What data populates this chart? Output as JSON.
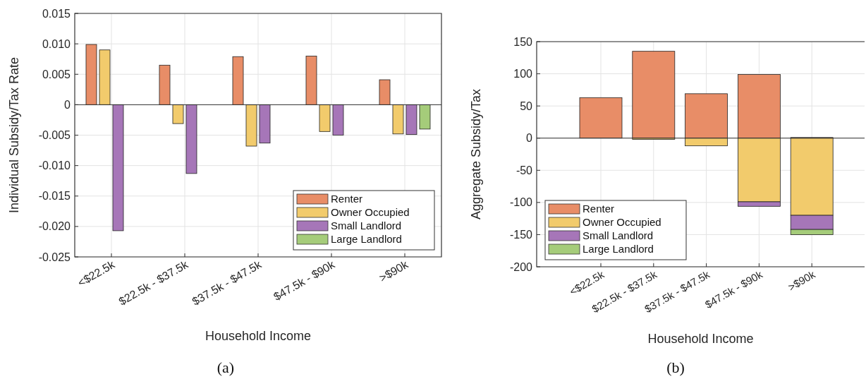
{
  "chart_data": [
    {
      "type": "bar",
      "xlabel": "Household Income",
      "ylabel": "Individual Subsidy/Tax Rate",
      "categories": [
        "<$22.5k",
        "$22.5k - $37.5k",
        "$37.5k - $47.5k",
        "$47.5k - $90k",
        ">$90k"
      ],
      "series": [
        {
          "name": "Renter",
          "color": "#e88d67",
          "values": [
            0.0099,
            0.0065,
            0.0079,
            0.008,
            0.0041
          ]
        },
        {
          "name": "Owner Occupied",
          "color": "#f2cb6c",
          "values": [
            0.009,
            -0.0031,
            -0.0068,
            -0.0044,
            -0.0048
          ]
        },
        {
          "name": "Small Landlord",
          "color": "#a676b8",
          "values": [
            -0.0207,
            -0.0113,
            -0.0063,
            -0.005,
            -0.0049
          ]
        },
        {
          "name": "Large Landlord",
          "color": "#a5cc7a",
          "values": [
            0,
            0,
            0,
            0,
            -0.004
          ]
        }
      ],
      "ylim": [
        -0.025,
        0.015
      ],
      "yticks": [
        {
          "value": -0.025,
          "label": "-0.025"
        },
        {
          "value": -0.02,
          "label": "-0.020"
        },
        {
          "value": -0.015,
          "label": "-0.015"
        },
        {
          "value": -0.01,
          "label": "-0.010"
        },
        {
          "value": -0.005,
          "label": "-0.005"
        },
        0,
        {
          "value": 0.005,
          "label": "0.005"
        },
        {
          "value": 0.01,
          "label": "0.010"
        },
        {
          "value": 0.015,
          "label": "0.015"
        }
      ],
      "grid": true,
      "legend": "bottom right",
      "annotations": [
        "(a)"
      ]
    },
    {
      "type": "bar",
      "stacked": true,
      "xlabel": "Household Income",
      "ylabel": "Aggregate Subsidy/Tax",
      "categories": [
        "<$22.5k",
        "$22.5k - $37.5k",
        "$37.5k - $47.5k",
        "$47.5k - $90k",
        ">$90k"
      ],
      "series": [
        {
          "name": "Renter",
          "color": "#e88d67",
          "values": [
            63,
            135,
            69,
            99,
            1
          ]
        },
        {
          "name": "Owner Occupied",
          "color": "#f2cb6c",
          "values": [
            0,
            -2,
            -12,
            -99,
            -120
          ]
        },
        {
          "name": "Small Landlord",
          "color": "#a676b8",
          "values": [
            0,
            0,
            0,
            -7,
            -22
          ]
        },
        {
          "name": "Large Landlord",
          "color": "#a5cc7a",
          "values": [
            0,
            0,
            0,
            0,
            -8
          ]
        }
      ],
      "ylim": [
        -200,
        150
      ],
      "yticks": [
        -200,
        -150,
        -100,
        -50,
        0,
        50,
        100,
        150
      ],
      "grid": true,
      "legend": "bottom left",
      "annotations": [
        "(b)"
      ]
    }
  ]
}
